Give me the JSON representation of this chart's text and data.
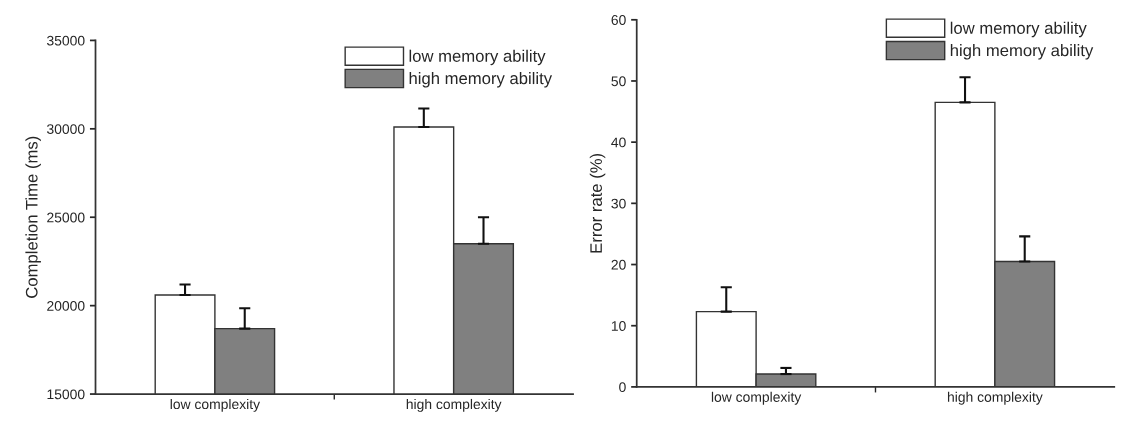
{
  "chart_data": [
    {
      "type": "bar",
      "ylabel": "Completion Time (ms)",
      "categories": [
        "low complexity",
        "high complexity"
      ],
      "series": [
        {
          "name": "low memory ability",
          "color": "#ffffff",
          "values": [
            20600,
            30100
          ],
          "errors": [
            [
              20600,
              21200
            ],
            [
              30100,
              31150
            ]
          ]
        },
        {
          "name": "high memory ability",
          "color": "#808080",
          "values": [
            18700,
            23500
          ],
          "errors": [
            [
              18700,
              19850
            ],
            [
              23500,
              25000
            ]
          ]
        }
      ],
      "ylim": [
        15000,
        35000
      ],
      "yticks": [
        15000,
        20000,
        25000,
        30000,
        35000
      ],
      "grid": false,
      "legend": "top right"
    },
    {
      "type": "bar",
      "ylabel": "Error rate (%)",
      "categories": [
        "low complexity",
        "high complexity"
      ],
      "series": [
        {
          "name": "low memory ability",
          "color": "#ffffff",
          "values": [
            12.3,
            46.5
          ],
          "errors": [
            [
              12.3,
              16.3
            ],
            [
              46.5,
              50.6
            ]
          ]
        },
        {
          "name": "high memory ability",
          "color": "#808080",
          "values": [
            2.1,
            20.5
          ],
          "errors": [
            [
              2.1,
              3.1
            ],
            [
              20.5,
              24.6
            ]
          ]
        }
      ],
      "ylim": [
        0,
        60
      ],
      "yticks": [
        0,
        10,
        20,
        30,
        40,
        50,
        60
      ],
      "grid": false,
      "legend": "top right"
    }
  ]
}
